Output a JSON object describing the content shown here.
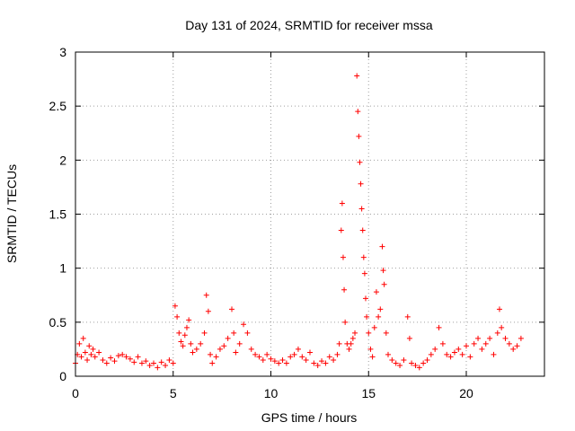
{
  "chart_data": {
    "type": "scatter",
    "title": "Day 131 of 2024, SRMTID for receiver mssa",
    "xlabel": "GPS time / hours",
    "ylabel": "SRMTID / TECUs",
    "xlim": [
      0,
      24
    ],
    "ylim": [
      0,
      3
    ],
    "xticks": [
      0,
      5,
      10,
      15,
      20
    ],
    "yticks": [
      0,
      0.5,
      1,
      1.5,
      2,
      2.5,
      3
    ],
    "xtick_labels": [
      "0",
      "5",
      "10",
      "15",
      "20"
    ],
    "ytick_labels": [
      "0",
      "0.5",
      "1",
      "1.5",
      "2",
      "2.5",
      "3"
    ],
    "grid": true,
    "marker": "+",
    "color": "#ff0000",
    "series": [
      {
        "name": "mssa",
        "points": [
          [
            0.0,
            0.12
          ],
          [
            0.1,
            0.2
          ],
          [
            0.2,
            0.3
          ],
          [
            0.3,
            0.18
          ],
          [
            0.4,
            0.35
          ],
          [
            0.5,
            0.22
          ],
          [
            0.6,
            0.15
          ],
          [
            0.7,
            0.28
          ],
          [
            0.8,
            0.2
          ],
          [
            0.9,
            0.25
          ],
          [
            1.0,
            0.18
          ],
          [
            1.2,
            0.22
          ],
          [
            1.4,
            0.15
          ],
          [
            1.6,
            0.12
          ],
          [
            1.8,
            0.17
          ],
          [
            2.0,
            0.14
          ],
          [
            2.2,
            0.19
          ],
          [
            2.4,
            0.2
          ],
          [
            2.6,
            0.18
          ],
          [
            2.8,
            0.16
          ],
          [
            3.0,
            0.13
          ],
          [
            3.2,
            0.18
          ],
          [
            3.4,
            0.12
          ],
          [
            3.6,
            0.14
          ],
          [
            3.8,
            0.1
          ],
          [
            4.0,
            0.12
          ],
          [
            4.2,
            0.08
          ],
          [
            4.4,
            0.13
          ],
          [
            4.6,
            0.1
          ],
          [
            4.8,
            0.15
          ],
          [
            5.0,
            0.12
          ],
          [
            5.1,
            0.65
          ],
          [
            5.2,
            0.55
          ],
          [
            5.3,
            0.4
          ],
          [
            5.4,
            0.32
          ],
          [
            5.5,
            0.28
          ],
          [
            5.6,
            0.38
          ],
          [
            5.7,
            0.45
          ],
          [
            5.8,
            0.52
          ],
          [
            5.9,
            0.3
          ],
          [
            6.0,
            0.22
          ],
          [
            6.2,
            0.25
          ],
          [
            6.4,
            0.3
          ],
          [
            6.6,
            0.4
          ],
          [
            6.7,
            0.75
          ],
          [
            6.8,
            0.6
          ],
          [
            6.9,
            0.2
          ],
          [
            7.0,
            0.12
          ],
          [
            7.2,
            0.18
          ],
          [
            7.4,
            0.25
          ],
          [
            7.6,
            0.28
          ],
          [
            7.8,
            0.35
          ],
          [
            8.0,
            0.62
          ],
          [
            8.1,
            0.4
          ],
          [
            8.2,
            0.22
          ],
          [
            8.4,
            0.3
          ],
          [
            8.6,
            0.48
          ],
          [
            8.8,
            0.4
          ],
          [
            9.0,
            0.25
          ],
          [
            9.2,
            0.2
          ],
          [
            9.4,
            0.18
          ],
          [
            9.6,
            0.15
          ],
          [
            9.8,
            0.2
          ],
          [
            10.0,
            0.16
          ],
          [
            10.2,
            0.14
          ],
          [
            10.4,
            0.12
          ],
          [
            10.6,
            0.15
          ],
          [
            10.8,
            0.12
          ],
          [
            11.0,
            0.18
          ],
          [
            11.2,
            0.2
          ],
          [
            11.4,
            0.25
          ],
          [
            11.6,
            0.18
          ],
          [
            11.8,
            0.15
          ],
          [
            12.0,
            0.22
          ],
          [
            12.2,
            0.12
          ],
          [
            12.4,
            0.1
          ],
          [
            12.6,
            0.14
          ],
          [
            12.8,
            0.12
          ],
          [
            13.0,
            0.18
          ],
          [
            13.2,
            0.15
          ],
          [
            13.4,
            0.2
          ],
          [
            13.5,
            0.3
          ],
          [
            13.6,
            1.35
          ],
          [
            13.65,
            1.6
          ],
          [
            13.7,
            1.1
          ],
          [
            13.75,
            0.8
          ],
          [
            13.8,
            0.5
          ],
          [
            13.9,
            0.3
          ],
          [
            14.0,
            0.25
          ],
          [
            14.1,
            0.3
          ],
          [
            14.2,
            0.35
          ],
          [
            14.3,
            0.4
          ],
          [
            14.4,
            2.78
          ],
          [
            14.45,
            2.45
          ],
          [
            14.5,
            2.22
          ],
          [
            14.55,
            1.98
          ],
          [
            14.6,
            1.78
          ],
          [
            14.65,
            1.55
          ],
          [
            14.7,
            1.35
          ],
          [
            14.75,
            1.1
          ],
          [
            14.8,
            0.95
          ],
          [
            14.85,
            0.72
          ],
          [
            14.9,
            0.55
          ],
          [
            15.0,
            0.4
          ],
          [
            15.1,
            0.25
          ],
          [
            15.2,
            0.18
          ],
          [
            15.3,
            0.45
          ],
          [
            15.4,
            0.78
          ],
          [
            15.5,
            0.55
          ],
          [
            15.6,
            0.62
          ],
          [
            15.7,
            1.2
          ],
          [
            15.75,
            0.98
          ],
          [
            15.8,
            0.85
          ],
          [
            15.9,
            0.4
          ],
          [
            16.0,
            0.2
          ],
          [
            16.2,
            0.15
          ],
          [
            16.4,
            0.12
          ],
          [
            16.6,
            0.1
          ],
          [
            16.8,
            0.15
          ],
          [
            17.0,
            0.55
          ],
          [
            17.1,
            0.35
          ],
          [
            17.2,
            0.12
          ],
          [
            17.4,
            0.1
          ],
          [
            17.6,
            0.08
          ],
          [
            17.8,
            0.12
          ],
          [
            18.0,
            0.15
          ],
          [
            18.2,
            0.2
          ],
          [
            18.4,
            0.25
          ],
          [
            18.6,
            0.45
          ],
          [
            18.8,
            0.3
          ],
          [
            19.0,
            0.2
          ],
          [
            19.2,
            0.18
          ],
          [
            19.4,
            0.22
          ],
          [
            19.6,
            0.25
          ],
          [
            19.8,
            0.2
          ],
          [
            20.0,
            0.28
          ],
          [
            20.2,
            0.18
          ],
          [
            20.4,
            0.3
          ],
          [
            20.6,
            0.35
          ],
          [
            20.8,
            0.25
          ],
          [
            21.0,
            0.3
          ],
          [
            21.2,
            0.35
          ],
          [
            21.4,
            0.2
          ],
          [
            21.6,
            0.4
          ],
          [
            21.7,
            0.62
          ],
          [
            21.8,
            0.45
          ],
          [
            22.0,
            0.35
          ],
          [
            22.2,
            0.3
          ],
          [
            22.4,
            0.25
          ],
          [
            22.6,
            0.28
          ],
          [
            22.8,
            0.35
          ]
        ]
      }
    ]
  }
}
